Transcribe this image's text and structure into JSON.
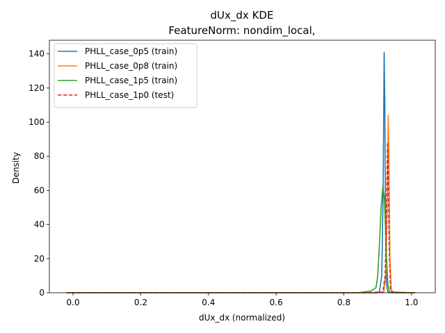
{
  "chart_data": {
    "type": "line",
    "title": "dUx_dx KDE",
    "subtitle": "FeatureNorm: nondim_local,",
    "xlabel": "dUx_dx (normalized)",
    "ylabel": "Density",
    "xlim": [
      -0.07,
      1.07
    ],
    "ylim": [
      0,
      148
    ],
    "xticks": [
      0.0,
      0.2,
      0.4,
      0.6,
      0.8,
      1.0
    ],
    "xtick_labels": [
      "0.0",
      "0.2",
      "0.4",
      "0.6",
      "0.8",
      "1.0"
    ],
    "yticks": [
      0,
      20,
      40,
      60,
      80,
      100,
      120,
      140
    ],
    "ytick_labels": [
      "0",
      "20",
      "40",
      "60",
      "80",
      "100",
      "120",
      "140"
    ],
    "grid": false,
    "legend_position": "top-left",
    "series": [
      {
        "name": "PHLL_case_0p5 (train)",
        "color": "#1f77b4",
        "dash": "solid",
        "x": [
          -0.02,
          0.5,
          0.88,
          0.905,
          0.912,
          0.916,
          0.919,
          0.921,
          0.923,
          0.926,
          0.93,
          0.94,
          1.01
        ],
        "y": [
          0,
          0,
          0,
          0.5,
          10,
          60,
          141,
          110,
          40,
          5,
          0.5,
          0,
          0
        ]
      },
      {
        "name": "PHLL_case_0p8 (train)",
        "color": "#ff7f0e",
        "dash": "solid",
        "x": [
          -0.02,
          0.5,
          0.9,
          0.918,
          0.924,
          0.928,
          0.931,
          0.933,
          0.936,
          0.94,
          0.945,
          1.01
        ],
        "y": [
          0,
          0,
          0,
          0.5,
          10,
          50,
          104,
          80,
          20,
          2,
          0,
          0
        ]
      },
      {
        "name": "PHLL_case_1p5 (train)",
        "color": "#2ca02c",
        "dash": "solid",
        "x": [
          -0.02,
          0.5,
          0.84,
          0.88,
          0.895,
          0.9,
          0.905,
          0.91,
          0.915,
          0.92,
          0.925,
          0.93,
          0.935,
          1.01
        ],
        "y": [
          0,
          0,
          0,
          1,
          3,
          10,
          28,
          50,
          62,
          55,
          25,
          5,
          0.5,
          0
        ]
      },
      {
        "name": "PHLL_case_1p0 (test)",
        "color": "#d62728",
        "dash": "dashed",
        "x": [
          -0.02,
          0.5,
          0.9,
          0.915,
          0.922,
          0.926,
          0.929,
          0.931,
          0.934,
          0.938,
          0.945,
          1.01
        ],
        "y": [
          0,
          0,
          0,
          0.5,
          10,
          50,
          88,
          70,
          25,
          2,
          0,
          0
        ]
      }
    ]
  }
}
